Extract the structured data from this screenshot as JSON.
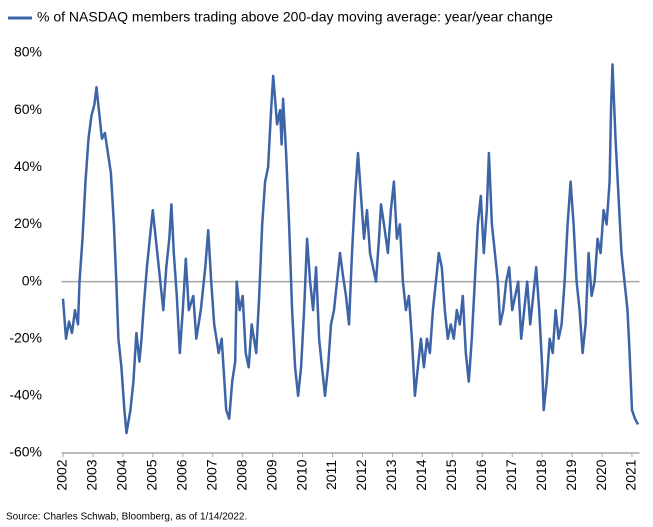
{
  "chart_data": {
    "type": "line",
    "note": "Source: Charles Schwab, Bloomberg, as of 1/14/2022.",
    "series": [
      {
        "name": "% of NASDAQ members trading above 200-day moving average: year/year change",
        "color": "#3e64a8",
        "values": [
          -6,
          -20,
          -14,
          -18,
          -10,
          -15,
          0,
          15,
          35,
          50,
          58,
          62,
          68,
          60,
          50,
          52,
          45,
          38,
          20,
          0,
          -20,
          -30,
          -45,
          -53,
          -45,
          -35,
          -18,
          -28,
          -20,
          -8,
          5,
          15,
          25,
          15,
          5,
          -10,
          5,
          15,
          27,
          10,
          -5,
          -25,
          -10,
          8,
          -10,
          -5,
          -20,
          -10,
          5,
          18,
          0,
          -15,
          -25,
          -20,
          -45,
          -48,
          -35,
          -28,
          0,
          -10,
          -5,
          -25,
          -30,
          -15,
          -25,
          -5,
          20,
          35,
          40,
          60,
          72,
          55,
          60,
          48,
          64,
          45,
          20,
          -10,
          -30,
          -40,
          -30,
          -10,
          15,
          0,
          -10,
          5,
          -20,
          -30,
          -40,
          -30,
          -15,
          -10,
          0,
          10,
          2,
          -5,
          -15,
          10,
          30,
          45,
          30,
          15,
          25,
          10,
          5,
          0,
          15,
          27,
          20,
          10,
          25,
          35,
          15,
          20,
          0,
          -10,
          -5,
          -20,
          -40,
          -30,
          -20,
          -30,
          -20,
          -25,
          -10,
          0,
          10,
          5,
          -10,
          -20,
          -15,
          -20,
          -10,
          -15,
          -5,
          -25,
          -35,
          -20,
          0,
          20,
          30,
          10,
          25,
          45,
          20,
          10,
          0,
          -15,
          -10,
          0,
          5,
          -10,
          -5,
          0,
          -20,
          -10,
          0,
          -15,
          -5,
          5,
          -10,
          -30,
          -45,
          -35,
          -20,
          -25,
          -10,
          -20,
          -15,
          0,
          20,
          35,
          20,
          0,
          -10,
          -25,
          -15,
          10,
          -5,
          0,
          15,
          10,
          25,
          20,
          35,
          60,
          76,
          50,
          30,
          10,
          0,
          -10,
          -25,
          -45,
          -48,
          -50
        ]
      }
    ],
    "x": [
      2002.0,
      2002.1,
      2002.2,
      2002.3,
      2002.4,
      2002.5,
      2002.55,
      2002.65,
      2002.75,
      2002.85,
      2002.95,
      2003.05,
      2003.12,
      2003.2,
      2003.3,
      2003.4,
      2003.5,
      2003.6,
      2003.7,
      2003.78,
      2003.85,
      2003.95,
      2004.05,
      2004.12,
      2004.25,
      2004.35,
      2004.45,
      2004.55,
      2004.62,
      2004.7,
      2004.8,
      2004.9,
      2005.0,
      2005.1,
      2005.2,
      2005.35,
      2005.45,
      2005.55,
      2005.62,
      2005.7,
      2005.8,
      2005.9,
      2006.0,
      2006.1,
      2006.2,
      2006.35,
      2006.45,
      2006.6,
      2006.75,
      2006.85,
      2006.95,
      2007.05,
      2007.2,
      2007.3,
      2007.45,
      2007.55,
      2007.65,
      2007.75,
      2007.8,
      2007.9,
      2008.0,
      2008.1,
      2008.2,
      2008.3,
      2008.45,
      2008.55,
      2008.65,
      2008.75,
      2008.85,
      2008.95,
      2009.02,
      2009.15,
      2009.25,
      2009.3,
      2009.35,
      2009.45,
      2009.55,
      2009.65,
      2009.75,
      2009.85,
      2009.95,
      2010.05,
      2010.15,
      2010.25,
      2010.35,
      2010.45,
      2010.55,
      2010.65,
      2010.75,
      2010.85,
      2010.95,
      2011.05,
      2011.15,
      2011.25,
      2011.35,
      2011.45,
      2011.55,
      2011.65,
      2011.75,
      2011.85,
      2011.95,
      2012.05,
      2012.15,
      2012.25,
      2012.35,
      2012.45,
      2012.55,
      2012.62,
      2012.72,
      2012.85,
      2012.95,
      2013.05,
      2013.15,
      2013.25,
      2013.35,
      2013.45,
      2013.55,
      2013.65,
      2013.75,
      2013.85,
      2013.95,
      2014.05,
      2014.15,
      2014.25,
      2014.35,
      2014.45,
      2014.55,
      2014.65,
      2014.75,
      2014.85,
      2014.95,
      2015.05,
      2015.15,
      2015.25,
      2015.35,
      2015.45,
      2015.55,
      2015.65,
      2015.75,
      2015.85,
      2015.95,
      2016.05,
      2016.15,
      2016.22,
      2016.32,
      2016.42,
      2016.52,
      2016.6,
      2016.7,
      2016.8,
      2016.9,
      2017.0,
      2017.1,
      2017.2,
      2017.3,
      2017.4,
      2017.5,
      2017.6,
      2017.7,
      2017.8,
      2017.9,
      2018.0,
      2018.05,
      2018.15,
      2018.25,
      2018.35,
      2018.45,
      2018.55,
      2018.65,
      2018.75,
      2018.85,
      2018.95,
      2019.05,
      2019.15,
      2019.25,
      2019.35,
      2019.45,
      2019.55,
      2019.65,
      2019.75,
      2019.85,
      2019.95,
      2020.05,
      2020.15,
      2020.25,
      2020.3,
      2020.35,
      2020.45,
      2020.55,
      2020.65,
      2020.75,
      2020.85,
      2020.92,
      2021.0,
      2021.1,
      2021.2
    ],
    "xlim": [
      2001.95,
      2021.25
    ],
    "xticks": [
      2002,
      2003,
      2004,
      2005,
      2006,
      2007,
      2008,
      2009,
      2010,
      2011,
      2012,
      2013,
      2014,
      2015,
      2016,
      2017,
      2018,
      2019,
      2020,
      2021
    ],
    "ylim": [
      -60,
      80
    ],
    "yticks": [
      {
        "value": 80,
        "label": "80%"
      },
      {
        "value": 60,
        "label": "60%"
      },
      {
        "value": 40,
        "label": "40%"
      },
      {
        "value": 20,
        "label": "20%"
      },
      {
        "value": 0,
        "label": "0%"
      },
      {
        "value": -20,
        "label": "-20%"
      },
      {
        "value": -40,
        "label": "-40%"
      },
      {
        "value": -60,
        "label": "-60%"
      }
    ],
    "legend": "top"
  }
}
